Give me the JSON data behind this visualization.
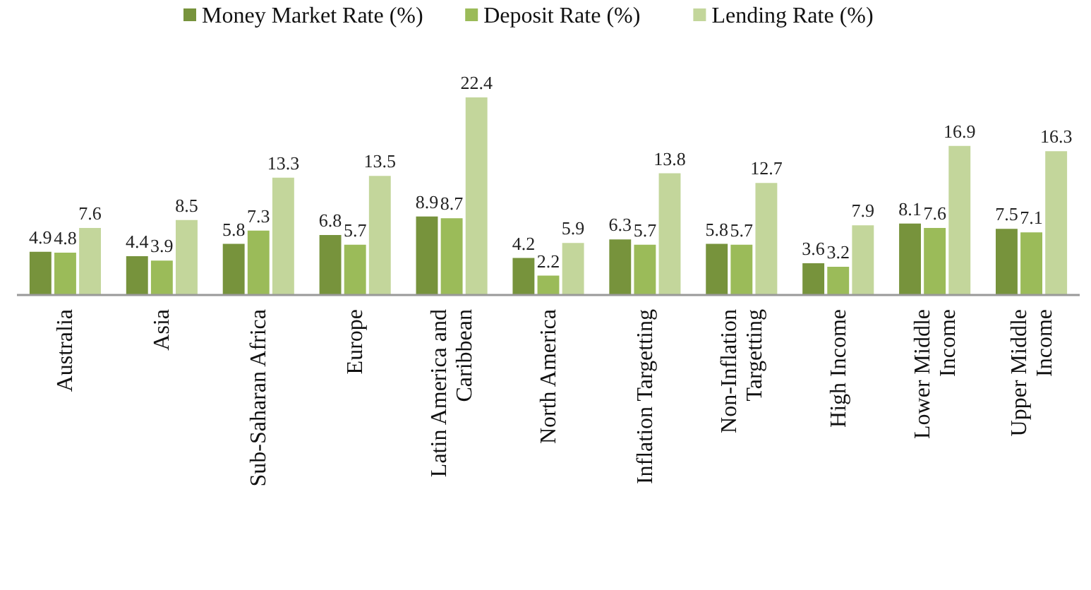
{
  "chart_data": {
    "type": "bar",
    "categories": [
      "Australia",
      "Asia",
      "Sub-Saharan Africa",
      "Europe",
      "Latin America and\nCaribbean",
      "North America",
      "Inflation Targetting",
      "Non-Inflation\nTargetting",
      "High Income",
      "Lower Middle\nIncome",
      "Upper Middle\nIncome"
    ],
    "series": [
      {
        "name": "Money Market Rate (%)",
        "color": "#77933c",
        "values": [
          4.9,
          4.4,
          5.8,
          6.8,
          8.9,
          4.2,
          6.3,
          5.8,
          3.6,
          8.1,
          7.5
        ]
      },
      {
        "name": "Deposit Rate (%)",
        "color": "#9bbb59",
        "values": [
          4.8,
          3.9,
          7.3,
          5.7,
          8.7,
          2.2,
          5.7,
          5.7,
          3.2,
          7.6,
          7.1
        ]
      },
      {
        "name": "Lending Rate (%)",
        "color": "#c3d69b",
        "values": [
          7.6,
          8.5,
          13.3,
          13.5,
          22.4,
          5.9,
          13.8,
          12.7,
          7.9,
          16.9,
          16.3
        ]
      }
    ],
    "data_labels": true,
    "legend": "top"
  }
}
